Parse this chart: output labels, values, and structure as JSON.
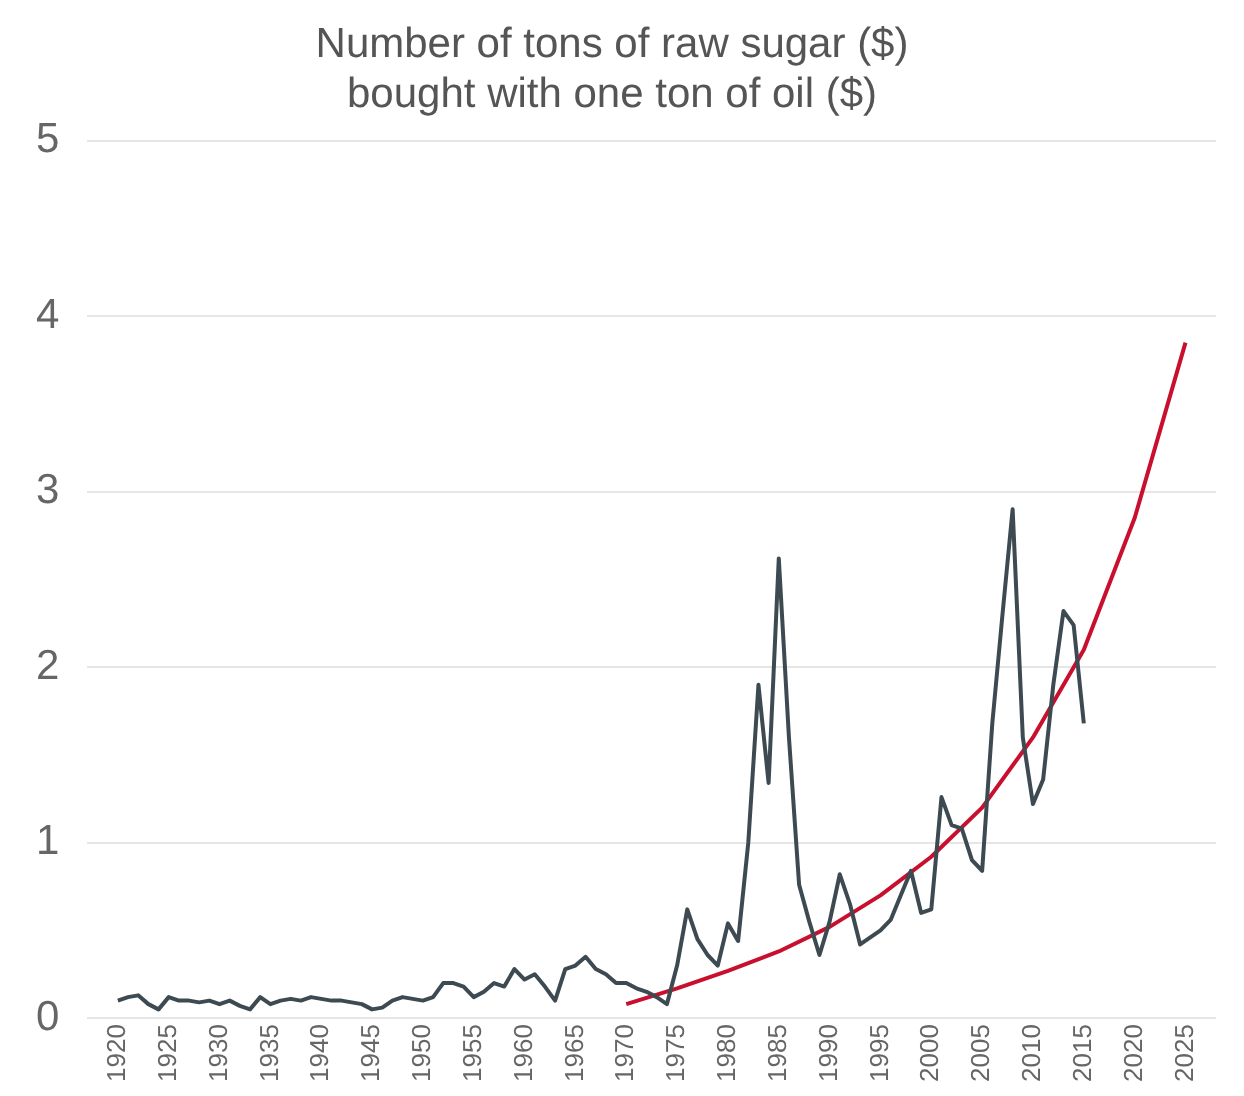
{
  "chart_data": {
    "type": "line",
    "title": "Number of tons of raw sugar ($)\nbought with one ton of oil ($)",
    "xlim": [
      1917,
      2028
    ],
    "xticks": [
      1920,
      1925,
      1930,
      1935,
      1940,
      1945,
      1950,
      1955,
      1960,
      1965,
      1970,
      1975,
      1980,
      1985,
      1990,
      1995,
      2000,
      2005,
      2010,
      2015,
      2020,
      2025
    ],
    "ylim": [
      0,
      5
    ],
    "yticks": [
      0,
      1,
      2,
      3,
      4,
      5
    ],
    "grid": "y",
    "legend": false,
    "marker": "none",
    "line_style": "solid",
    "series": [
      {
        "color": "#3d4a52",
        "x": [
          1920,
          1921,
          1922,
          1923,
          1924,
          1925,
          1926,
          1927,
          1928,
          1929,
          1930,
          1931,
          1932,
          1933,
          1934,
          1935,
          1936,
          1937,
          1938,
          1939,
          1940,
          1941,
          1942,
          1943,
          1944,
          1945,
          1946,
          1947,
          1948,
          1949,
          1950,
          1951,
          1952,
          1953,
          1954,
          1955,
          1956,
          1957,
          1958,
          1959,
          1960,
          1961,
          1962,
          1963,
          1964,
          1965,
          1966,
          1967,
          1968,
          1969,
          1970,
          1971,
          1972,
          1973,
          1974,
          1975,
          1976,
          1977,
          1978,
          1979,
          1980,
          1981,
          1982,
          1983,
          1984,
          1985,
          1986,
          1987,
          1988,
          1989,
          1990,
          1991,
          1992,
          1993,
          1994,
          1995,
          1996,
          1997,
          1998,
          1999,
          2000,
          2001,
          2002,
          2003,
          2004,
          2005,
          2006,
          2007,
          2008,
          2009,
          2010,
          2011,
          2012,
          2013,
          2014,
          2015
        ],
        "values": [
          0.1,
          0.12,
          0.13,
          0.08,
          0.05,
          0.12,
          0.1,
          0.1,
          0.09,
          0.1,
          0.08,
          0.1,
          0.07,
          0.05,
          0.12,
          0.08,
          0.1,
          0.11,
          0.1,
          0.12,
          0.11,
          0.1,
          0.1,
          0.09,
          0.08,
          0.05,
          0.06,
          0.1,
          0.12,
          0.11,
          0.1,
          0.12,
          0.2,
          0.2,
          0.18,
          0.12,
          0.15,
          0.2,
          0.18,
          0.28,
          0.22,
          0.25,
          0.18,
          0.1,
          0.28,
          0.3,
          0.35,
          0.28,
          0.25,
          0.2,
          0.2,
          0.17,
          0.15,
          0.12,
          0.08,
          0.3,
          0.62,
          0.45,
          0.36,
          0.3,
          0.54,
          0.44,
          1.0,
          1.9,
          1.34,
          2.62,
          1.6,
          0.76,
          0.55,
          0.36,
          0.55,
          0.82,
          0.65,
          0.42,
          0.46,
          0.5,
          0.56,
          0.7,
          0.84,
          0.6,
          0.62,
          1.26,
          1.1,
          1.08,
          0.9,
          0.84,
          1.68,
          2.3,
          2.9,
          1.6,
          1.22,
          1.36,
          1.9,
          2.32,
          2.24,
          1.68
        ]
      },
      {
        "color": "#c8102e",
        "x": [
          1970,
          1975,
          1980,
          1985,
          1990,
          1995,
          2000,
          2005,
          2010,
          2015,
          2020,
          2025
        ],
        "values": [
          0.08,
          0.17,
          0.27,
          0.38,
          0.52,
          0.7,
          0.92,
          1.2,
          1.6,
          2.1,
          2.85,
          3.85
        ]
      }
    ]
  }
}
